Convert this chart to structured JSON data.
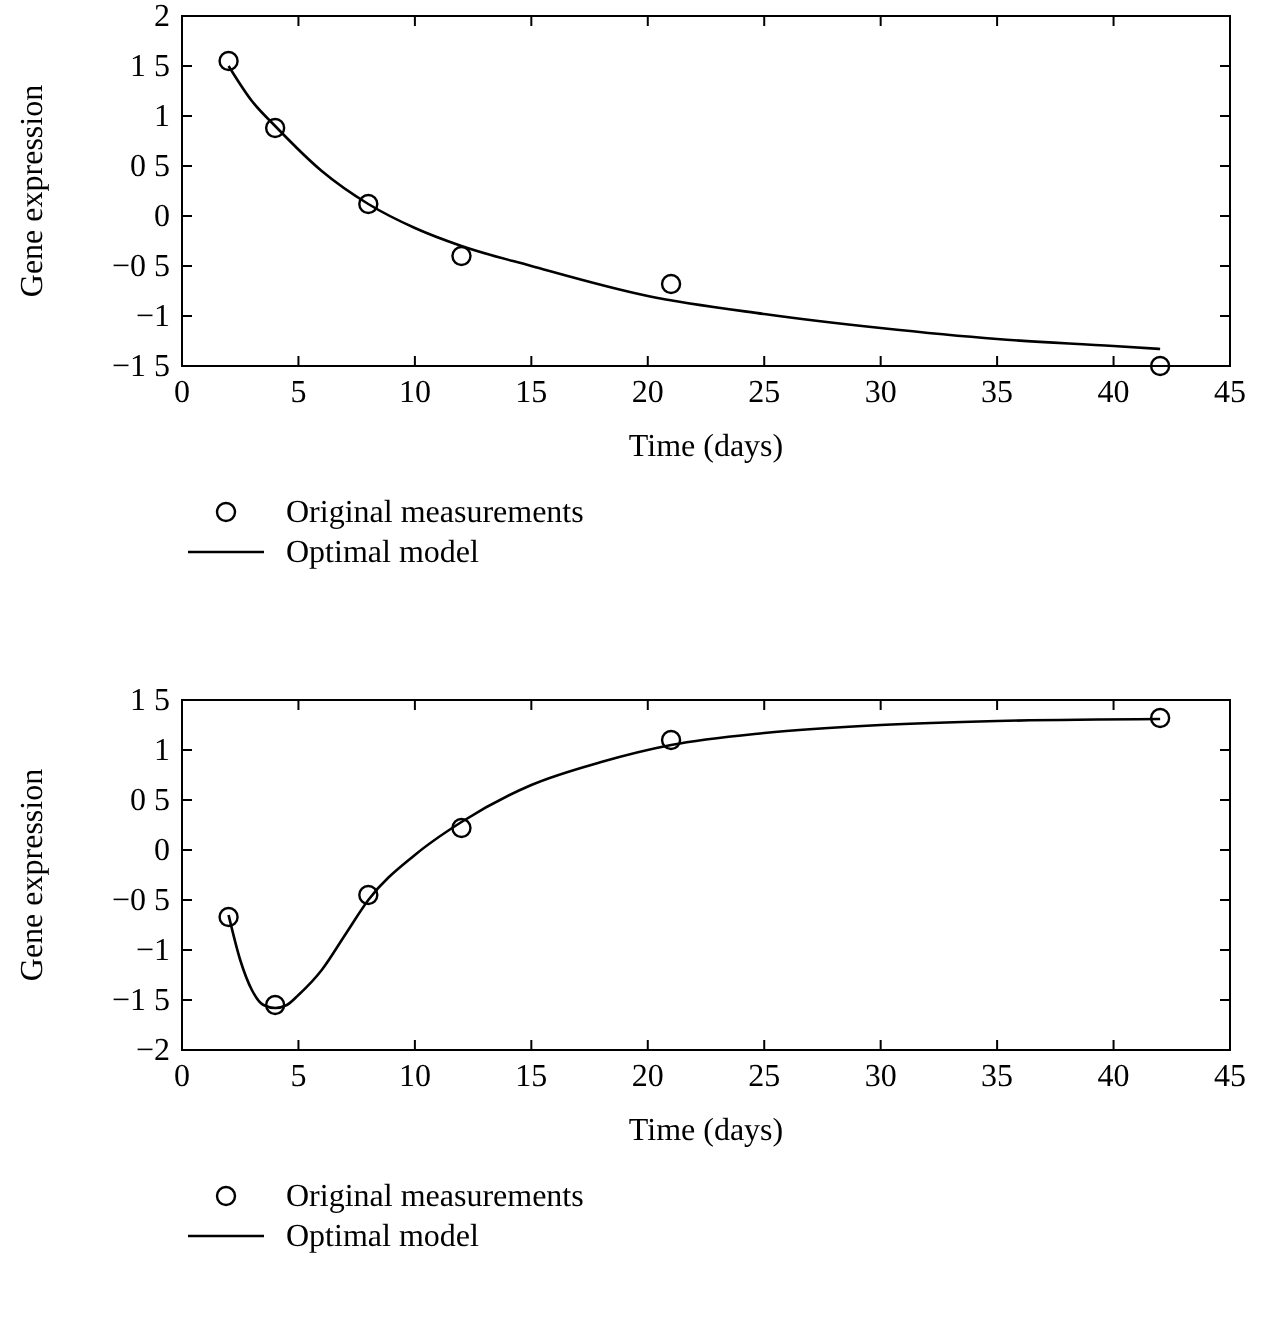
{
  "chart_data": [
    {
      "type": "line",
      "xlabel": "Time (days)",
      "ylabel": "Gene expression",
      "xlim": [
        0,
        45
      ],
      "xticks": [
        0,
        5,
        10,
        15,
        20,
        25,
        30,
        35,
        40,
        45
      ],
      "ylim": [
        -1.5,
        2
      ],
      "yticks": [
        {
          "value": -1.5,
          "label": "−1 5"
        },
        -1,
        {
          "value": -0.5,
          "label": "−0 5"
        },
        0,
        {
          "value": 0.5,
          "label": "0 5"
        },
        1,
        {
          "value": 1.5,
          "label": "1 5"
        },
        2
      ],
      "legend": "bottom",
      "grid": false,
      "series": [
        {
          "name": "Original measurements",
          "type": "scatter",
          "marker": "circle",
          "color": "#000000",
          "x": [
            2,
            4,
            8,
            12,
            21,
            42
          ],
          "values": [
            1.55,
            0.88,
            0.12,
            -0.4,
            -0.68,
            -1.5
          ]
        },
        {
          "name": "Optimal model",
          "marker": "none",
          "line_style": "solid",
          "color": "#000000",
          "x": [
            2,
            3,
            4,
            6,
            8,
            10,
            12,
            15,
            20,
            25,
            30,
            35,
            40,
            42
          ],
          "values": [
            1.5,
            1.15,
            0.9,
            0.45,
            0.12,
            -0.12,
            -0.3,
            -0.5,
            -0.8,
            -0.98,
            -1.12,
            -1.23,
            -1.3,
            -1.33
          ]
        }
      ]
    },
    {
      "type": "line",
      "xlabel": "Time (days)",
      "ylabel": "Gene expression",
      "xlim": [
        0,
        45
      ],
      "xticks": [
        0,
        5,
        10,
        15,
        20,
        25,
        30,
        35,
        40,
        45
      ],
      "ylim": [
        -2,
        1.5
      ],
      "yticks": [
        -2,
        {
          "value": -1.5,
          "label": "−1 5"
        },
        -1,
        {
          "value": -0.5,
          "label": "−0 5"
        },
        0,
        {
          "value": 0.5,
          "label": "0 5"
        },
        1,
        {
          "value": 1.5,
          "label": "1 5"
        }
      ],
      "legend": "bottom",
      "grid": false,
      "series": [
        {
          "name": "Original measurements",
          "type": "scatter",
          "marker": "circle",
          "color": "#000000",
          "x": [
            2,
            4,
            8,
            12,
            21,
            42
          ],
          "values": [
            -0.67,
            -1.55,
            -0.45,
            0.22,
            1.1,
            1.32
          ]
        },
        {
          "name": "Optimal model",
          "marker": "none",
          "line_style": "solid",
          "color": "#000000",
          "x": [
            2,
            2.5,
            3,
            3.5,
            4,
            4.5,
            5,
            6,
            7,
            8,
            10,
            12,
            15,
            18,
            21,
            25,
            30,
            35,
            42
          ],
          "values": [
            -0.65,
            -1.1,
            -1.4,
            -1.55,
            -1.58,
            -1.55,
            -1.45,
            -1.2,
            -0.85,
            -0.5,
            -0.05,
            0.28,
            0.65,
            0.88,
            1.05,
            1.17,
            1.25,
            1.29,
            1.31
          ]
        }
      ]
    }
  ]
}
